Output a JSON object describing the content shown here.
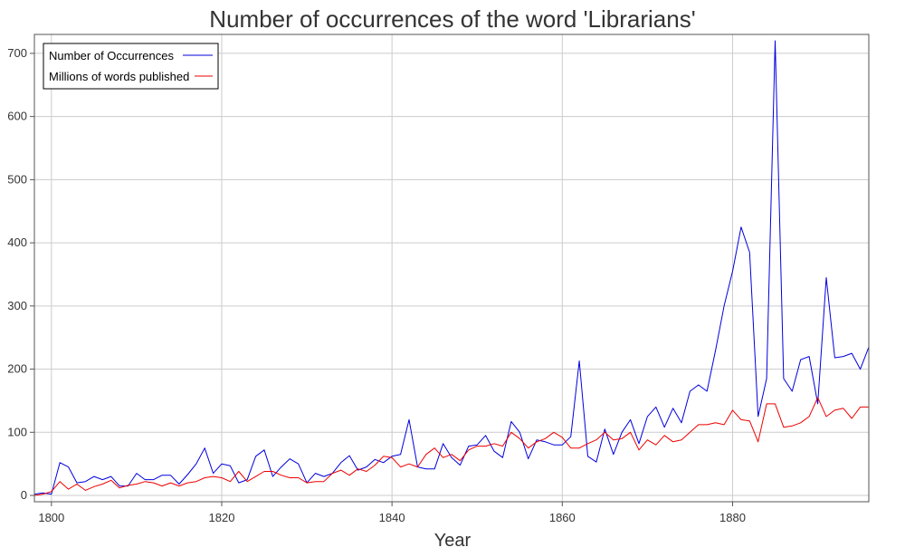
{
  "chart_data": {
    "type": "line",
    "title": "Number of occurrences of the word 'Librarians'",
    "xlabel": "Year",
    "ylabel": "",
    "xlim": [
      1798,
      1896
    ],
    "ylim": [
      -10,
      730
    ],
    "xticks": [
      1800,
      1820,
      1840,
      1860,
      1880
    ],
    "yticks": [
      0,
      100,
      200,
      300,
      400,
      500,
      600,
      700
    ],
    "grid": true,
    "legend_position": "top-left",
    "x": [
      1798,
      1799,
      1800,
      1801,
      1802,
      1803,
      1804,
      1805,
      1806,
      1807,
      1808,
      1809,
      1810,
      1811,
      1812,
      1813,
      1814,
      1815,
      1816,
      1817,
      1818,
      1819,
      1820,
      1821,
      1822,
      1823,
      1824,
      1825,
      1826,
      1827,
      1828,
      1829,
      1830,
      1831,
      1832,
      1833,
      1834,
      1835,
      1836,
      1837,
      1838,
      1839,
      1840,
      1841,
      1842,
      1843,
      1844,
      1845,
      1846,
      1847,
      1848,
      1849,
      1850,
      1851,
      1852,
      1853,
      1854,
      1855,
      1856,
      1857,
      1858,
      1859,
      1860,
      1861,
      1862,
      1863,
      1864,
      1865,
      1866,
      1867,
      1868,
      1869,
      1870,
      1871,
      1872,
      1873,
      1874,
      1875,
      1876,
      1877,
      1878,
      1879,
      1880,
      1881,
      1882,
      1883,
      1884,
      1885,
      1886,
      1887,
      1888,
      1889,
      1890,
      1891,
      1892,
      1893,
      1894,
      1895,
      1896
    ],
    "series": [
      {
        "name": "Number of Occurrences",
        "color": "#0000dd",
        "values": [
          2,
          4,
          2,
          52,
          45,
          20,
          22,
          30,
          25,
          30,
          15,
          15,
          35,
          25,
          25,
          32,
          32,
          18,
          33,
          50,
          75,
          35,
          50,
          47,
          20,
          25,
          62,
          72,
          30,
          45,
          58,
          50,
          20,
          35,
          30,
          35,
          52,
          63,
          40,
          45,
          57,
          52,
          62,
          65,
          120,
          45,
          42,
          42,
          82,
          60,
          48,
          78,
          80,
          95,
          70,
          60,
          117,
          100,
          58,
          88,
          85,
          80,
          80,
          93,
          213,
          62,
          53,
          105,
          65,
          100,
          120,
          82,
          125,
          140,
          108,
          138,
          115,
          165,
          175,
          165,
          230,
          300,
          355,
          425,
          385,
          125,
          185,
          720,
          185,
          165,
          215,
          220,
          145,
          345,
          218,
          220,
          225,
          200,
          235
        ]
      },
      {
        "name": "Millions of words published",
        "color": "#ee0000",
        "values": [
          0,
          2,
          6,
          22,
          10,
          18,
          8,
          14,
          18,
          24,
          12,
          16,
          18,
          22,
          20,
          15,
          20,
          15,
          20,
          22,
          28,
          30,
          28,
          22,
          38,
          22,
          30,
          38,
          38,
          32,
          28,
          28,
          20,
          22,
          22,
          35,
          40,
          32,
          42,
          38,
          48,
          62,
          60,
          45,
          50,
          45,
          65,
          75,
          60,
          65,
          55,
          72,
          78,
          78,
          82,
          78,
          100,
          90,
          75,
          85,
          90,
          100,
          92,
          75,
          75,
          82,
          88,
          100,
          88,
          90,
          100,
          72,
          88,
          80,
          95,
          85,
          88,
          100,
          112,
          112,
          115,
          112,
          135,
          120,
          118,
          85,
          145,
          145,
          108,
          110,
          115,
          125,
          155,
          125,
          135,
          138,
          122,
          140,
          140
        ]
      }
    ]
  }
}
